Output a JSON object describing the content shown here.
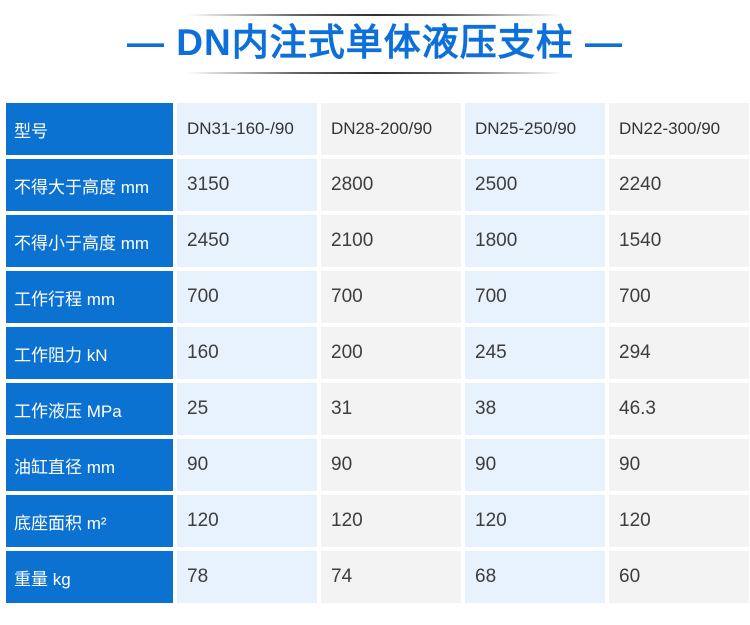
{
  "title": {
    "text": "— DN内注式单体液压支柱 —"
  },
  "colors": {
    "title_text": "#0d6fda",
    "label_bg": "#0b72d2",
    "label_text": "#ffffff",
    "column_blue_bg": "#e8f2fc",
    "column_gray_bg": "#f3f3f3",
    "value_text": "#3d3d3d"
  },
  "chart_data": {
    "type": "table",
    "title": "— DN内注式单体液压支柱 —",
    "header_label": "型号",
    "models": [
      "DN31-160-/90",
      "DN28-200/90",
      "DN25-250/90",
      "DN22-300/90"
    ],
    "rows": [
      {
        "label": "型号",
        "values": [
          "DN31-160-/90",
          "DN28-200/90",
          "DN25-250/90",
          "DN22-300/90"
        ]
      },
      {
        "label": "不得大于高度 mm",
        "values": [
          "3150",
          "2800",
          "2500",
          "2240"
        ]
      },
      {
        "label": "不得小于高度 mm",
        "values": [
          "2450",
          "2100",
          "1800",
          "1540"
        ]
      },
      {
        "label": "工作行程 mm",
        "values": [
          "700",
          "700",
          "700",
          "700"
        ]
      },
      {
        "label": "工作阻力 kN",
        "values": [
          "160",
          "200",
          "245",
          "294"
        ]
      },
      {
        "label": "工作液压 MPa",
        "values": [
          "25",
          "31",
          "38",
          "46.3"
        ]
      },
      {
        "label": "油缸直径 mm",
        "values": [
          "90",
          "90",
          "90",
          "90"
        ]
      },
      {
        "label": "底座面积 m²",
        "values": [
          "120",
          "120",
          "120",
          "120"
        ]
      },
      {
        "label": "重量 kg",
        "values": [
          "78",
          "74",
          "68",
          "60"
        ]
      }
    ]
  }
}
